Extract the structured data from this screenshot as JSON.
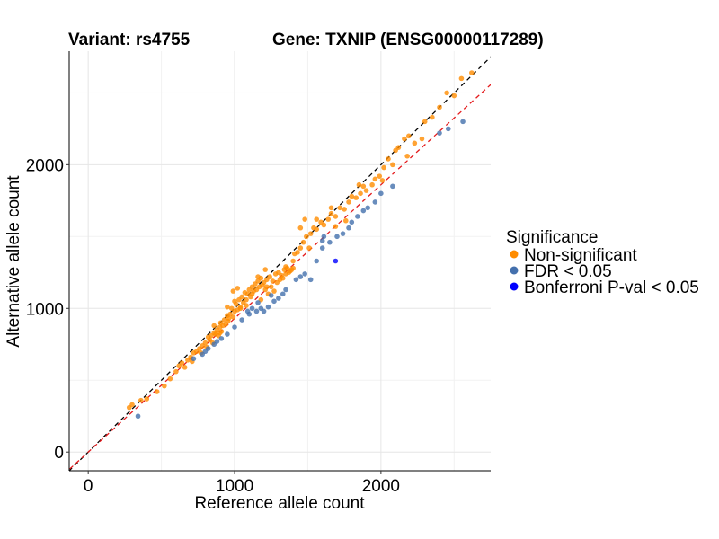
{
  "chart_data": {
    "type": "scatter",
    "title_left": "Variant: rs4755",
    "title_right": "Gene: TXNIP (ENSG00000117289)",
    "xlabel": "Reference allele count",
    "ylabel": "Alternative allele count",
    "xlim": [
      -130,
      2750
    ],
    "ylim": [
      -130,
      2790
    ],
    "xticks": [
      0,
      1000,
      2000
    ],
    "yticks": [
      0,
      1000,
      2000
    ],
    "legend": {
      "title": "Significance",
      "position": "right",
      "entries": [
        {
          "label": "Non-significant",
          "color": "#FF8C00"
        },
        {
          "label": "FDR < 0.05",
          "color": "#4470AD"
        },
        {
          "label": "Bonferroni P-val < 0.05",
          "color": "#0000FF"
        }
      ]
    },
    "reference_lines": [
      {
        "name": "identity",
        "slope": 1.0,
        "intercept": 0,
        "color": "#000000",
        "style": "dashed"
      },
      {
        "name": "fit",
        "slope": 0.93,
        "intercept": 0,
        "color": "#E41A1C",
        "style": "dashed"
      }
    ],
    "series": [
      {
        "name": "Non-significant",
        "color": "#FF8C00",
        "points": [
          [
            280,
            310
          ],
          [
            300,
            330
          ],
          [
            360,
            360
          ],
          [
            400,
            370
          ],
          [
            470,
            420
          ],
          [
            520,
            460
          ],
          [
            560,
            510
          ],
          [
            600,
            560
          ],
          [
            620,
            600
          ],
          [
            640,
            620
          ],
          [
            660,
            590
          ],
          [
            680,
            640
          ],
          [
            700,
            660
          ],
          [
            710,
            630
          ],
          [
            720,
            690
          ],
          [
            740,
            700
          ],
          [
            760,
            720
          ],
          [
            770,
            690
          ],
          [
            780,
            740
          ],
          [
            800,
            760
          ],
          [
            810,
            730
          ],
          [
            820,
            800
          ],
          [
            830,
            780
          ],
          [
            840,
            810
          ],
          [
            850,
            760
          ],
          [
            860,
            830
          ],
          [
            870,
            820
          ],
          [
            880,
            850
          ],
          [
            890,
            810
          ],
          [
            900,
            870
          ],
          [
            905,
            900
          ],
          [
            910,
            840
          ],
          [
            920,
            880
          ],
          [
            930,
            920
          ],
          [
            940,
            890
          ],
          [
            950,
            950
          ],
          [
            955,
            910
          ],
          [
            960,
            930
          ],
          [
            970,
            960
          ],
          [
            980,
            1000
          ],
          [
            990,
            940
          ],
          [
            1000,
            980
          ],
          [
            1010,
            1030
          ],
          [
            1020,
            990
          ],
          [
            1030,
            1060
          ],
          [
            1040,
            1010
          ],
          [
            1050,
            1080
          ],
          [
            1060,
            1040
          ],
          [
            1070,
            1110
          ],
          [
            1080,
            1060
          ],
          [
            1090,
            1100
          ],
          [
            1100,
            1130
          ],
          [
            1110,
            1080
          ],
          [
            1120,
            1150
          ],
          [
            1130,
            1120
          ],
          [
            1140,
            1170
          ],
          [
            1150,
            1130
          ],
          [
            1160,
            1190
          ],
          [
            1170,
            1150
          ],
          [
            1180,
            1210
          ],
          [
            1190,
            1160
          ],
          [
            1200,
            1180
          ],
          [
            1210,
            1130
          ],
          [
            1220,
            1200
          ],
          [
            1240,
            1220
          ],
          [
            1260,
            1190
          ],
          [
            1280,
            1240
          ],
          [
            1300,
            1250
          ],
          [
            1320,
            1230
          ],
          [
            1340,
            1270
          ],
          [
            1360,
            1280
          ],
          [
            1380,
            1260
          ],
          [
            1270,
            1120
          ],
          [
            1230,
            1100
          ],
          [
            1250,
            1150
          ],
          [
            1290,
            1180
          ],
          [
            1310,
            1200
          ],
          [
            1330,
            1210
          ],
          [
            1350,
            1240
          ],
          [
            1370,
            1250
          ],
          [
            1390,
            1270
          ],
          [
            1400,
            1280
          ],
          [
            1410,
            1380
          ],
          [
            1430,
            1390
          ],
          [
            1450,
            1420
          ],
          [
            1470,
            1460
          ],
          [
            1490,
            1500
          ],
          [
            1520,
            1520
          ],
          [
            1540,
            1560
          ],
          [
            1560,
            1550
          ],
          [
            1590,
            1600
          ],
          [
            1610,
            1580
          ],
          [
            1640,
            1620
          ],
          [
            1660,
            1660
          ],
          [
            1690,
            1640
          ],
          [
            1720,
            1700
          ],
          [
            1750,
            1690
          ],
          [
            1780,
            1740
          ],
          [
            1800,
            1780
          ],
          [
            1830,
            1770
          ],
          [
            1860,
            1800
          ],
          [
            1880,
            1850
          ],
          [
            1900,
            1820
          ],
          [
            1940,
            1860
          ],
          [
            1960,
            1900
          ],
          [
            1990,
            1920
          ],
          [
            2020,
            1980
          ],
          [
            2050,
            2040
          ],
          [
            2080,
            2000
          ],
          [
            2100,
            2100
          ],
          [
            2120,
            2120
          ],
          [
            2160,
            2180
          ],
          [
            2190,
            2200
          ],
          [
            2230,
            2150
          ],
          [
            2280,
            2180
          ],
          [
            2300,
            2300
          ],
          [
            2350,
            2330
          ],
          [
            2400,
            2400
          ],
          [
            2450,
            2500
          ],
          [
            2500,
            2480
          ],
          [
            2550,
            2600
          ],
          [
            2620,
            2640
          ],
          [
            1160,
            1220
          ],
          [
            1210,
            1270
          ],
          [
            1080,
            1020
          ],
          [
            1040,
            1000
          ],
          [
            950,
            1010
          ],
          [
            900,
            830
          ],
          [
            860,
            880
          ],
          [
            1000,
            1050
          ],
          [
            1120,
            1100
          ],
          [
            1220,
            1150
          ],
          [
            1180,
            1060
          ],
          [
            1480,
            1620
          ],
          [
            1660,
            1700
          ],
          [
            1850,
            1860
          ],
          [
            1560,
            1620
          ],
          [
            1450,
            1560
          ],
          [
            1350,
            1290
          ],
          [
            1400,
            1330
          ],
          [
            2010,
            1890
          ],
          [
            2180,
            2060
          ],
          [
            1760,
            1610
          ],
          [
            1690,
            1570
          ],
          [
            1510,
            1420
          ],
          [
            990,
            1120
          ],
          [
            1020,
            1140
          ]
        ]
      },
      {
        "name": "FDR < 0.05",
        "color": "#4470AD",
        "points": [
          [
            340,
            250
          ],
          [
            720,
            650
          ],
          [
            780,
            680
          ],
          [
            800,
            700
          ],
          [
            820,
            720
          ],
          [
            860,
            750
          ],
          [
            880,
            770
          ],
          [
            910,
            790
          ],
          [
            950,
            820
          ],
          [
            1000,
            870
          ],
          [
            1050,
            920
          ],
          [
            1100,
            960
          ],
          [
            1150,
            980
          ],
          [
            1180,
            1000
          ],
          [
            1200,
            980
          ],
          [
            1230,
            1010
          ],
          [
            1270,
            1050
          ],
          [
            1300,
            1070
          ],
          [
            1330,
            1100
          ],
          [
            1350,
            1130
          ],
          [
            1420,
            1200
          ],
          [
            1450,
            1220
          ],
          [
            1480,
            1240
          ],
          [
            1520,
            1200
          ],
          [
            1560,
            1330
          ],
          [
            1600,
            1420
          ],
          [
            1650,
            1460
          ],
          [
            1700,
            1500
          ],
          [
            1740,
            1520
          ],
          [
            1780,
            1560
          ],
          [
            1800,
            1600
          ],
          [
            1840,
            1640
          ],
          [
            1880,
            1680
          ],
          [
            1910,
            1700
          ],
          [
            1960,
            1740
          ],
          [
            2000,
            1800
          ],
          [
            2080,
            1850
          ],
          [
            2400,
            2220
          ],
          [
            2460,
            2250
          ],
          [
            2560,
            2300
          ],
          [
            1120,
            1000
          ],
          [
            1090,
            980
          ],
          [
            1160,
            1040
          ],
          [
            1250,
            1090
          ],
          [
            1600,
            1470
          ],
          [
            1610,
            1500
          ]
        ]
      },
      {
        "name": "Bonferroni P-val < 0.05",
        "color": "#0000FF",
        "points": [
          [
            1690,
            1330
          ]
        ]
      }
    ]
  }
}
